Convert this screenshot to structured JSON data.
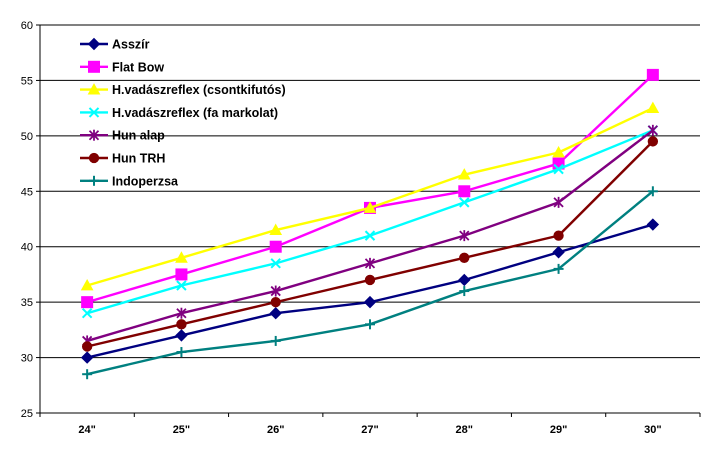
{
  "chart_data": {
    "type": "line",
    "categories": [
      "24\"",
      "25\"",
      "26\"",
      "27\"",
      "28\"",
      "29\"",
      "30\""
    ],
    "ylim": [
      25,
      60
    ],
    "yticks": [
      25,
      30,
      35,
      40,
      45,
      50,
      55,
      60
    ],
    "grid": true,
    "legend_position": "top-left",
    "series": [
      {
        "name": "Asszír",
        "color": "#000080",
        "marker": "diamond",
        "values": [
          30,
          32,
          34,
          35,
          37,
          39.5,
          42
        ]
      },
      {
        "name": "Flat Bow",
        "color": "#ff00ff",
        "marker": "square",
        "values": [
          35,
          37.5,
          40,
          43.5,
          45,
          47.5,
          55.5
        ]
      },
      {
        "name": "H.vadászreflex (csontkifutós)",
        "color": "#ffff00",
        "marker": "triangle",
        "values": [
          36.5,
          39,
          41.5,
          43.5,
          46.5,
          48.5,
          52.5
        ]
      },
      {
        "name": "H.vadászreflex (fa markolat)",
        "color": "#00ffff",
        "marker": "x",
        "values": [
          34,
          36.5,
          38.5,
          41,
          44,
          47,
          50.5
        ]
      },
      {
        "name": "Hun alap",
        "color": "#800080",
        "marker": "star",
        "values": [
          31.5,
          34,
          36,
          38.5,
          41,
          44,
          50.5
        ]
      },
      {
        "name": "Hun TRH",
        "color": "#800000",
        "marker": "circle",
        "values": [
          31,
          33,
          35,
          37,
          39,
          41,
          49.5
        ]
      },
      {
        "name": "Indoperzsa",
        "color": "#008080",
        "marker": "plus",
        "values": [
          28.5,
          30.5,
          31.5,
          33,
          36,
          38,
          45
        ]
      }
    ]
  }
}
